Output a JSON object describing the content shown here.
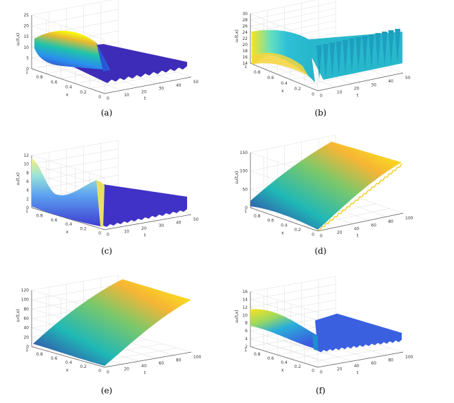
{
  "figure": {
    "panels": [
      {
        "caption": "(a)",
        "zlabel": "u₁(t,x)",
        "xlabel": "t",
        "ylabel": "x",
        "t_ticks": [
          "0",
          "10",
          "20",
          "30",
          "40",
          "50"
        ],
        "x_ticks": [
          "0",
          "0.2",
          "0.4",
          "0.6",
          "0.8",
          "1"
        ],
        "z_ticks": [
          "0",
          "5",
          "10",
          "15",
          "20",
          "25"
        ]
      },
      {
        "caption": "(b)",
        "zlabel": "u₂(t,x)",
        "xlabel": "t",
        "ylabel": "x",
        "t_ticks": [
          "0",
          "10",
          "20",
          "30",
          "40",
          "50"
        ],
        "x_ticks": [
          "0",
          "0.2",
          "0.4",
          "0.6",
          "0.8",
          "1"
        ],
        "z_ticks": [
          "14",
          "16",
          "18",
          "20",
          "22",
          "24",
          "26",
          "28",
          "30"
        ]
      },
      {
        "caption": "(c)",
        "zlabel": "u₃(t,x)",
        "xlabel": "t",
        "ylabel": "x",
        "t_ticks": [
          "0",
          "10",
          "20",
          "30",
          "40",
          "50"
        ],
        "x_ticks": [
          "0",
          "0.2",
          "0.4",
          "0.6",
          "0.8",
          "1"
        ],
        "z_ticks": [
          "0",
          "2",
          "4",
          "6",
          "8",
          "10",
          "12"
        ]
      },
      {
        "caption": "(d)",
        "zlabel": "u₄(t,x)",
        "xlabel": "t",
        "ylabel": "x",
        "t_ticks": [
          "0",
          "20",
          "40",
          "60",
          "80",
          "100"
        ],
        "x_ticks": [
          "0",
          "0.2",
          "0.4",
          "0.6",
          "0.8",
          "1"
        ],
        "z_ticks": [
          "0",
          "50",
          "100",
          "150"
        ]
      },
      {
        "caption": "(e)",
        "zlabel": "u₅(t,x)",
        "xlabel": "t",
        "ylabel": "x",
        "t_ticks": [
          "0",
          "20",
          "40",
          "60",
          "80",
          "100"
        ],
        "x_ticks": [
          "0",
          "0.2",
          "0.4",
          "0.6",
          "0.8",
          "1"
        ],
        "z_ticks": [
          "0",
          "20",
          "40",
          "60",
          "80",
          "100",
          "120"
        ]
      },
      {
        "caption": "(f)",
        "zlabel": "u₆(t,x)",
        "xlabel": "t",
        "ylabel": "x",
        "t_ticks": [
          "0",
          "20",
          "40",
          "60",
          "80",
          "100"
        ],
        "x_ticks": [
          "0",
          "0.2",
          "0.4",
          "0.6",
          "0.8",
          "1"
        ],
        "z_ticks": [
          "2",
          "4",
          "6",
          "8",
          "10",
          "12",
          "14",
          "16"
        ]
      }
    ]
  },
  "colors": {
    "low": "#3e26a8",
    "mid": "#1fb8b6",
    "high": "#f9fb0e"
  }
}
